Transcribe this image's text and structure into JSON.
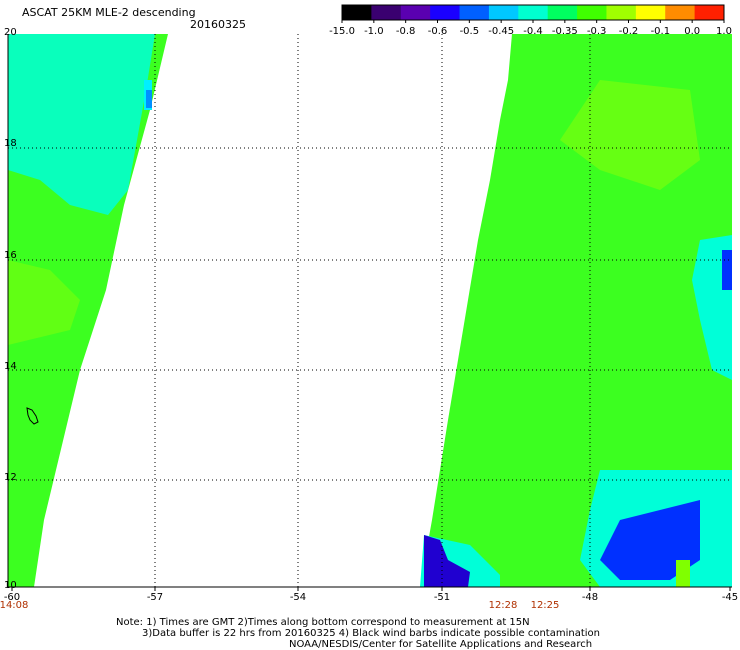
{
  "header": {
    "title": "ASCAT 25KM MLE-2 descending",
    "date": "20160325"
  },
  "colorbar": {
    "ticks": [
      "-15.0",
      "-1.0",
      "-0.8",
      "-0.6",
      "-0.5",
      "-0.45",
      "-0.4",
      "-0.35",
      "-0.3",
      "-0.2",
      "-0.1",
      "0.0",
      "1.0"
    ],
    "colors": [
      "#000000",
      "#3a0070",
      "#5a00b0",
      "#1a00ff",
      "#0060ff",
      "#00c8ff",
      "#00ffd0",
      "#00ff60",
      "#40ff00",
      "#a0ff00",
      "#ffff00",
      "#ff8c00",
      "#ff2000"
    ]
  },
  "axes": {
    "lat_labels": [
      "20",
      "18",
      "16",
      "14",
      "12",
      "10"
    ],
    "lon_labels": [
      "-60",
      "-57",
      "-54",
      "-51",
      "-48",
      "-45"
    ]
  },
  "pass_times": [
    "14:08",
    "12:28",
    "12:25"
  ],
  "note": {
    "line1": "Note: 1) Times are GMT 2)Times along bottom correspond to measurement at 15N",
    "line2": "3)Data buffer is 22 hrs from 20160325 4) Black wind barbs indicate possible contamination",
    "line3": "NOAA/NESDIS/Center for Satellite Applications and Research"
  },
  "swath_colors": {
    "green": "#3cff20",
    "light_green": "#70ff10",
    "cyan": "#00ffd8",
    "light_cyan": "#00f0ff",
    "blue": "#0030ff",
    "dark_blue": "#2000d0"
  }
}
